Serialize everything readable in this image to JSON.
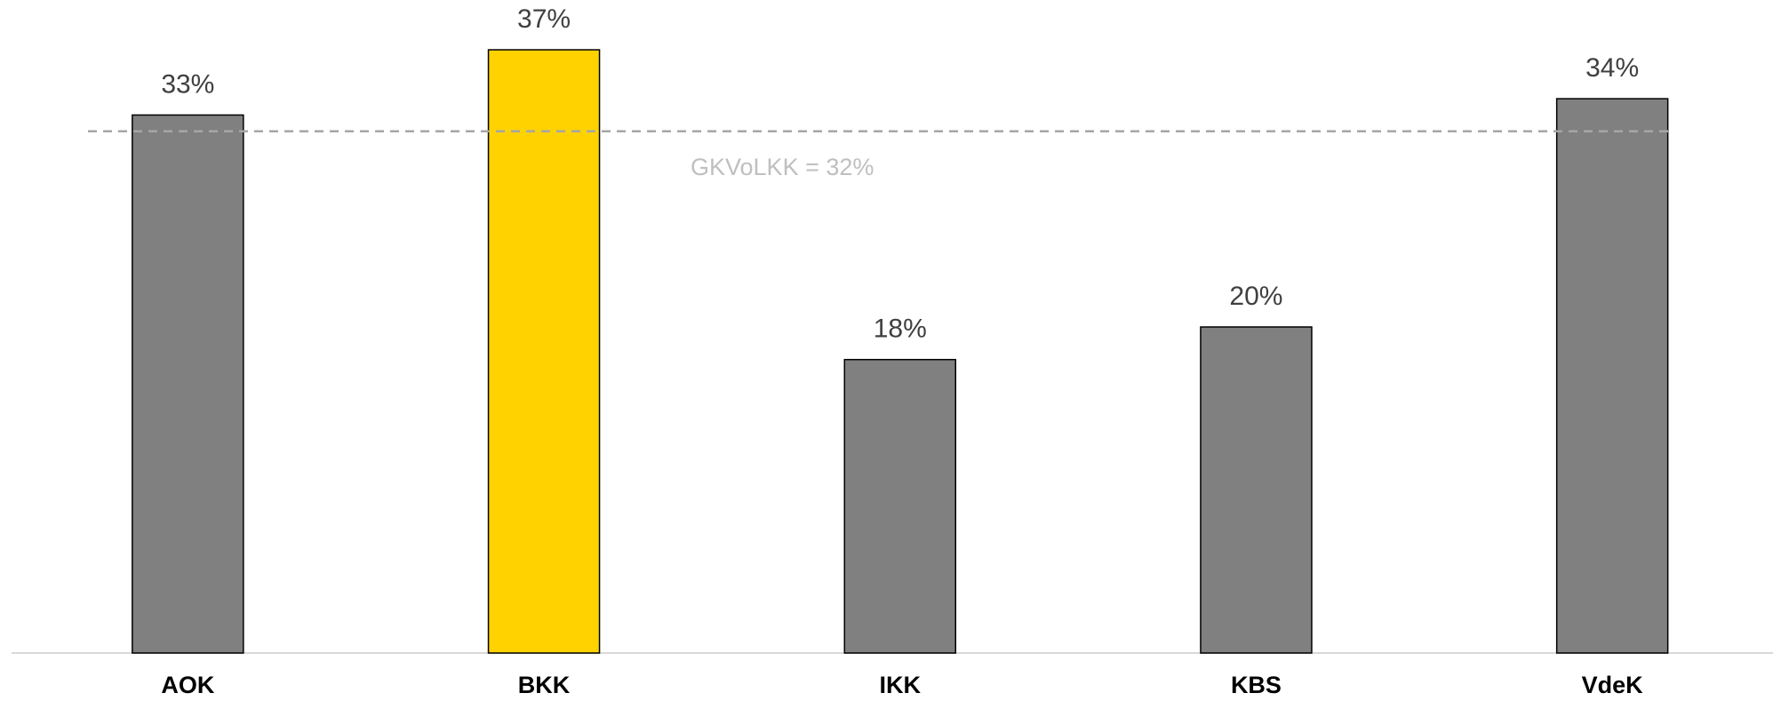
{
  "chart_data": {
    "type": "bar",
    "categories": [
      "AOK",
      "BKK",
      "IKK",
      "KBS",
      "VdeK"
    ],
    "values": [
      33,
      37,
      18,
      20,
      34
    ],
    "value_labels": [
      "33%",
      "37%",
      "18%",
      "20%",
      "34%"
    ],
    "colors": [
      "#808080",
      "#ffd200",
      "#808080",
      "#808080",
      "#808080"
    ],
    "ylim": [
      0,
      40
    ],
    "reference_line": {
      "value": 32,
      "label": "GKVoLKK = 32%",
      "color": "#a6a6a6"
    }
  }
}
